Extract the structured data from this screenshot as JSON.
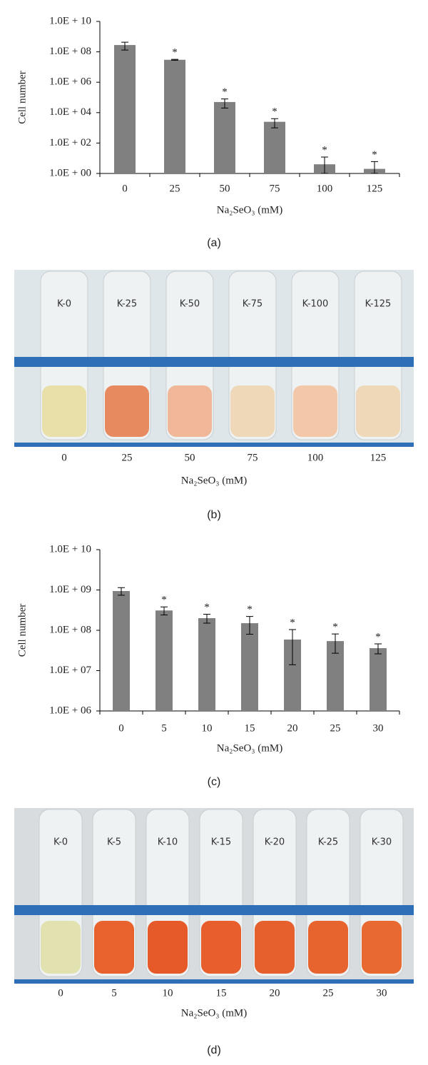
{
  "chart_data": [
    {
      "type": "bar",
      "ylabel": "Cell number",
      "xlabel": "Na₂SeO₃ (mM)",
      "caption": "(a)",
      "categories": [
        "0",
        "25",
        "50",
        "75",
        "100",
        "125"
      ],
      "values": [
        280000000,
        30000000,
        50000,
        2500,
        4,
        2
      ],
      "errors": [
        150000000,
        2000000,
        30000,
        1500,
        8,
        4
      ],
      "significance": [
        null,
        "*",
        "*",
        "*",
        "*",
        "*"
      ],
      "color": "#808080",
      "log_scale": true,
      "ylim": [
        1,
        10000000000
      ],
      "yticks": [
        {
          "value": 1,
          "label": "1.0E + 00"
        },
        {
          "value": 100,
          "label": "1.0E + 02"
        },
        {
          "value": 10000,
          "label": "1.0E + 04"
        },
        {
          "value": 1000000,
          "label": "1.0E + 06"
        },
        {
          "value": 100000000,
          "label": "1.0E + 08"
        },
        {
          "value": 10000000000,
          "label": "1.0E + 10"
        }
      ]
    },
    {
      "type": "bar",
      "ylabel": "Cell number",
      "xlabel": "Na₂SeO₃ (mM)",
      "caption": "(c)",
      "categories": [
        "0",
        "5",
        "10",
        "15",
        "20",
        "25",
        "30"
      ],
      "values": [
        940000000,
        310000000,
        200000000,
        150000000,
        59000000,
        54000000,
        36000000
      ],
      "errors": [
        200000000,
        70000000,
        50000000,
        70000000,
        45000000,
        27000000,
        10000000
      ],
      "significance": [
        null,
        "*",
        "*",
        "*",
        "*",
        "*",
        "*"
      ],
      "color": "#808080",
      "log_scale": true,
      "ylim": [
        1000000,
        10000000000
      ],
      "yticks": [
        {
          "value": 1000000,
          "label": "1.0E + 06"
        },
        {
          "value": 10000000,
          "label": "1.0E + 07"
        },
        {
          "value": 100000000,
          "label": "1.0E + 08"
        },
        {
          "value": 1000000000,
          "label": "1.0E + 09"
        },
        {
          "value": 10000000000,
          "label": "1.0E + 10"
        }
      ]
    }
  ],
  "photos": [
    {
      "caption": "(b)",
      "xlabel": "Na₂SeO₃ (mM)",
      "categories": [
        "0",
        "25",
        "50",
        "75",
        "100",
        "125"
      ],
      "tube_labels": [
        "K-0",
        "K-25",
        "K-50",
        "K-75",
        "K-100",
        "K-125"
      ],
      "liquid_colors": [
        "#e8e0a8",
        "#e88a60",
        "#f0b898",
        "#eed8b8",
        "#f2c8a8",
        "#eed8b8"
      ]
    },
    {
      "caption": "(d)",
      "xlabel": "Na₂SeO₃ (mM)",
      "categories": [
        "0",
        "5",
        "10",
        "15",
        "20",
        "25",
        "30"
      ],
      "tube_labels": [
        "K-0",
        "K-5",
        "K-10",
        "K-15",
        "K-20",
        "K-25",
        "K-30"
      ],
      "liquid_colors": [
        "#e2e2b0",
        "#e8622e",
        "#e65a2a",
        "#e85e2c",
        "#e6602e",
        "#e8642e",
        "#e86a30"
      ]
    }
  ]
}
